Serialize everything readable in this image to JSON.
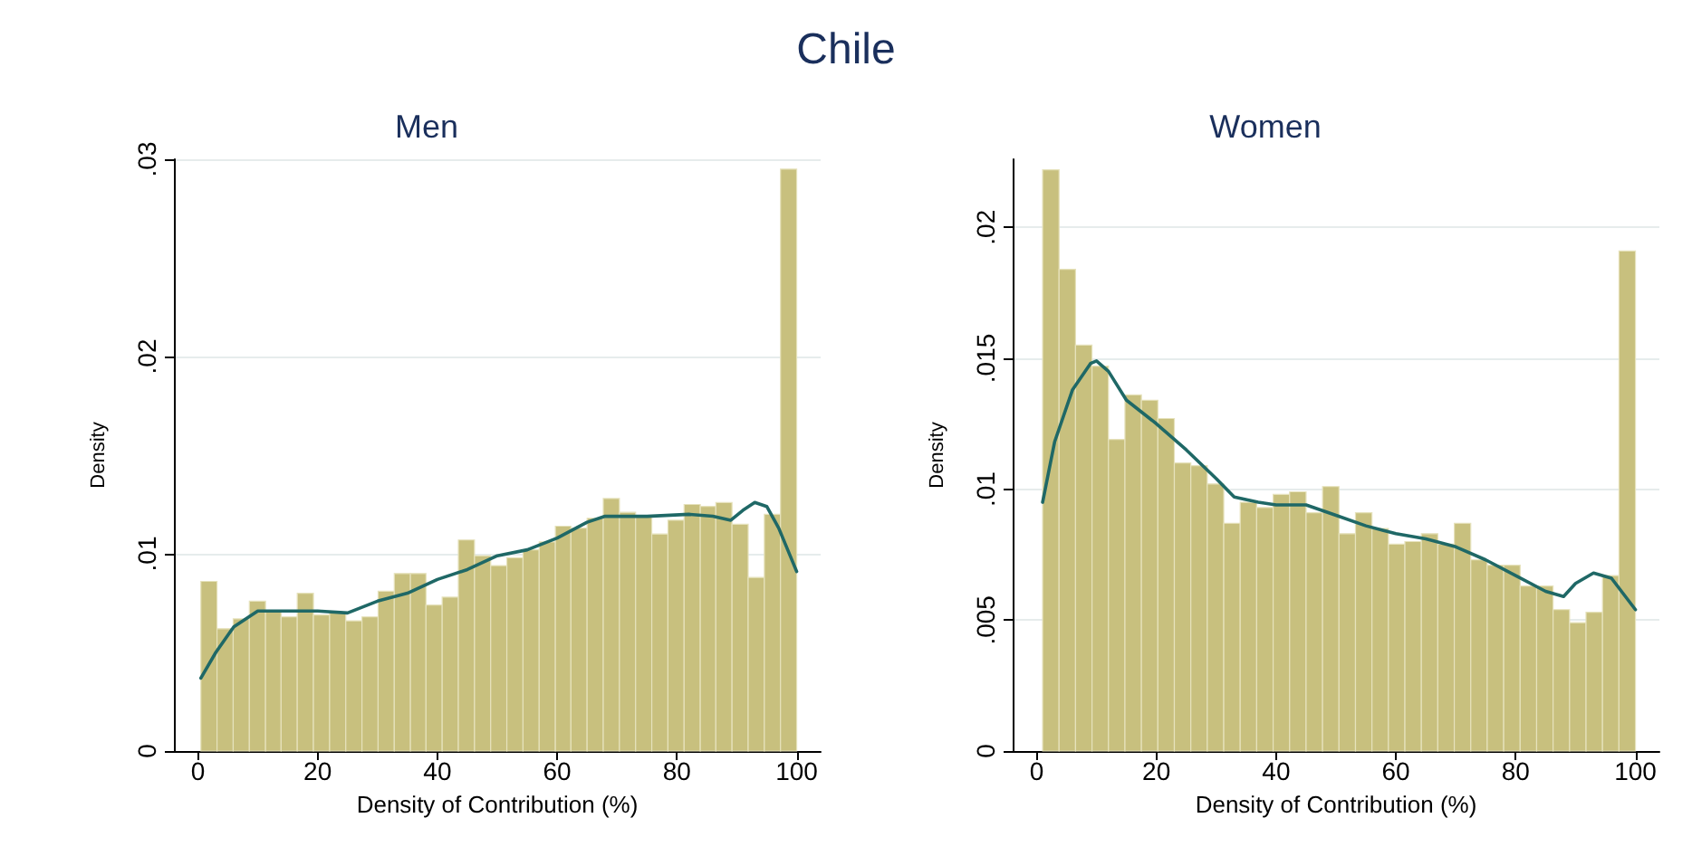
{
  "chart_data": [
    {
      "type": "histogram",
      "title": "Men",
      "annotations": [
        "Chile"
      ],
      "xlabel": "Density of Contribution (%)",
      "ylabel": "Density",
      "color": "#c8c07e",
      "bins": [
        0.5,
        3.2,
        5.9,
        8.6,
        11.3,
        13.9,
        16.6,
        19.3,
        22.0,
        24.7,
        27.4,
        30.1,
        32.8,
        35.5,
        38.1,
        40.8,
        43.5,
        46.2,
        48.9,
        51.6,
        54.3,
        57.0,
        59.7,
        62.3,
        65.0,
        67.7,
        70.4,
        73.1,
        75.8,
        78.5,
        81.2,
        83.9,
        86.5,
        89.2,
        91.9,
        94.6,
        97.3,
        100
      ],
      "values": [
        0.0086,
        0.0062,
        0.0067,
        0.0076,
        0.0071,
        0.0068,
        0.008,
        0.0069,
        0.007,
        0.0066,
        0.0068,
        0.0081,
        0.009,
        0.009,
        0.0074,
        0.0078,
        0.0107,
        0.0099,
        0.0094,
        0.0098,
        0.0102,
        0.0106,
        0.0114,
        0.0113,
        0.0118,
        0.0128,
        0.0121,
        0.0119,
        0.011,
        0.0117,
        0.0125,
        0.0124,
        0.0126,
        0.0115,
        0.0088,
        0.012,
        0.0295
      ],
      "series": [
        {
          "type": "line",
          "color": "#1f6866",
          "x": [
            0.5,
            3,
            6,
            10,
            15,
            20,
            25,
            30,
            35,
            40,
            45,
            50,
            55,
            60,
            65,
            68,
            75,
            82,
            86,
            89,
            91,
            93,
            95,
            97,
            100
          ],
          "values": [
            0.0037,
            0.005,
            0.0063,
            0.0071,
            0.0071,
            0.0071,
            0.007,
            0.0076,
            0.008,
            0.0087,
            0.0092,
            0.0099,
            0.0102,
            0.0108,
            0.0116,
            0.0119,
            0.0119,
            0.012,
            0.0119,
            0.0117,
            0.0122,
            0.0126,
            0.0124,
            0.0113,
            0.0091
          ]
        }
      ],
      "xlim": [
        -4,
        104
      ],
      "xticks": [
        0,
        20,
        40,
        60,
        80,
        100
      ],
      "ylim": [
        0,
        0.03
      ],
      "yticks": [
        0,
        {
          "value": 0.01,
          "label": ".01"
        },
        {
          "value": 0.02,
          "label": ".02"
        },
        {
          "value": 0.03,
          "label": ".03"
        }
      ],
      "grid": "y"
    },
    {
      "type": "histogram",
      "title": "Women",
      "xlabel": "Density of Contribution (%)",
      "ylabel": "Density",
      "color": "#c8c07e",
      "bins": [
        1,
        3.75,
        6.5,
        9.25,
        12,
        14.75,
        17.5,
        20.25,
        23,
        25.75,
        28.5,
        31.25,
        34,
        36.75,
        39.5,
        42.25,
        45,
        47.75,
        50.5,
        53.25,
        56,
        58.75,
        61.5,
        64.25,
        67,
        69.75,
        72.5,
        75.25,
        78,
        80.75,
        83.5,
        86.25,
        89,
        91.75,
        94.5,
        97.25,
        100
      ],
      "values": [
        0.0222,
        0.0184,
        0.0155,
        0.0147,
        0.0119,
        0.0136,
        0.0134,
        0.0127,
        0.011,
        0.0109,
        0.0102,
        0.0087,
        0.0095,
        0.0093,
        0.0098,
        0.0099,
        0.0091,
        0.0101,
        0.0083,
        0.0091,
        0.0085,
        0.0079,
        0.008,
        0.0083,
        0.0079,
        0.0087,
        0.0073,
        0.0071,
        0.0071,
        0.0063,
        0.0063,
        0.0054,
        0.0049,
        0.0053,
        0.0067,
        0.0191
      ],
      "series": [
        {
          "type": "line",
          "color": "#1f6866",
          "x": [
            1,
            3,
            6,
            9,
            10,
            12,
            15,
            20,
            25,
            30,
            33,
            37,
            40,
            45,
            50,
            55,
            60,
            65,
            70,
            75,
            80,
            85,
            88,
            90,
            93,
            96,
            100
          ],
          "values": [
            0.0095,
            0.0118,
            0.0138,
            0.0148,
            0.0149,
            0.0145,
            0.0134,
            0.0125,
            0.0115,
            0.0104,
            0.0097,
            0.0095,
            0.0094,
            0.0094,
            0.009,
            0.0086,
            0.0083,
            0.0081,
            0.0078,
            0.0073,
            0.0067,
            0.0061,
            0.0059,
            0.0064,
            0.0068,
            0.0066,
            0.0054
          ]
        }
      ],
      "xlim": [
        -4,
        104
      ],
      "xticks": [
        0,
        20,
        40,
        60,
        80,
        100
      ],
      "ylim": [
        0,
        0.0226
      ],
      "yticks": [
        0,
        {
          "value": 0.005,
          "label": ".005"
        },
        {
          "value": 0.01,
          "label": ".01"
        },
        {
          "value": 0.015,
          "label": ".015"
        },
        {
          "value": 0.02,
          "label": ".02"
        }
      ],
      "grid": "y"
    }
  ]
}
